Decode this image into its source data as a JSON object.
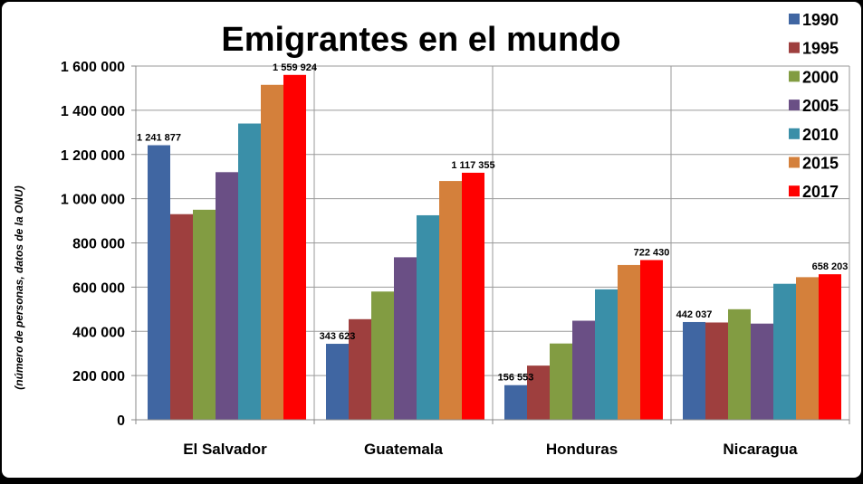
{
  "chart_data": {
    "type": "bar",
    "title": "Emigrantes en el mundo",
    "ylabel": "(número de personas, datos de la ONU)",
    "xlabel": "",
    "categories": [
      "El Salvador",
      "Guatemala",
      "Honduras",
      "Nicaragua"
    ],
    "ylim": [
      0,
      1600000
    ],
    "yticks": [
      0,
      200000,
      400000,
      600000,
      800000,
      1000000,
      1200000,
      1400000,
      1600000
    ],
    "ytick_labels": [
      "0",
      "200 000",
      "400 000",
      "600 000",
      "800 000",
      "1 000 000",
      "1 200 000",
      "1 400 000",
      "1 600 000"
    ],
    "grid": true,
    "legend_position": "right",
    "series": [
      {
        "name": "1990",
        "color": "#4066a2",
        "values": [
          1241877,
          343623,
          156553,
          442037
        ]
      },
      {
        "name": "1995",
        "color": "#9e3f3e",
        "values": [
          930000,
          455000,
          245000,
          440000
        ]
      },
      {
        "name": "2000",
        "color": "#829c42",
        "values": [
          950000,
          580000,
          345000,
          500000
        ]
      },
      {
        "name": "2005",
        "color": "#6a4f85",
        "values": [
          1120000,
          735000,
          448000,
          435000
        ]
      },
      {
        "name": "2010",
        "color": "#3a8fa8",
        "values": [
          1340000,
          925000,
          590000,
          615000
        ]
      },
      {
        "name": "2015",
        "color": "#d4803b",
        "values": [
          1515000,
          1080000,
          700000,
          645000
        ]
      },
      {
        "name": "2017",
        "color": "#ff0000",
        "values": [
          1559924,
          1117355,
          722430,
          658203
        ]
      }
    ],
    "data_labels": [
      {
        "category": 0,
        "series": 0,
        "text": "1 241 877"
      },
      {
        "category": 0,
        "series": 6,
        "text": "1 559 924"
      },
      {
        "category": 1,
        "series": 0,
        "text": "343 623"
      },
      {
        "category": 1,
        "series": 6,
        "text": "1 117 355"
      },
      {
        "category": 2,
        "series": 0,
        "text": "156 553"
      },
      {
        "category": 2,
        "series": 6,
        "text": "722 430"
      },
      {
        "category": 3,
        "series": 0,
        "text": "442 037"
      },
      {
        "category": 3,
        "series": 6,
        "text": "658 203"
      }
    ]
  }
}
